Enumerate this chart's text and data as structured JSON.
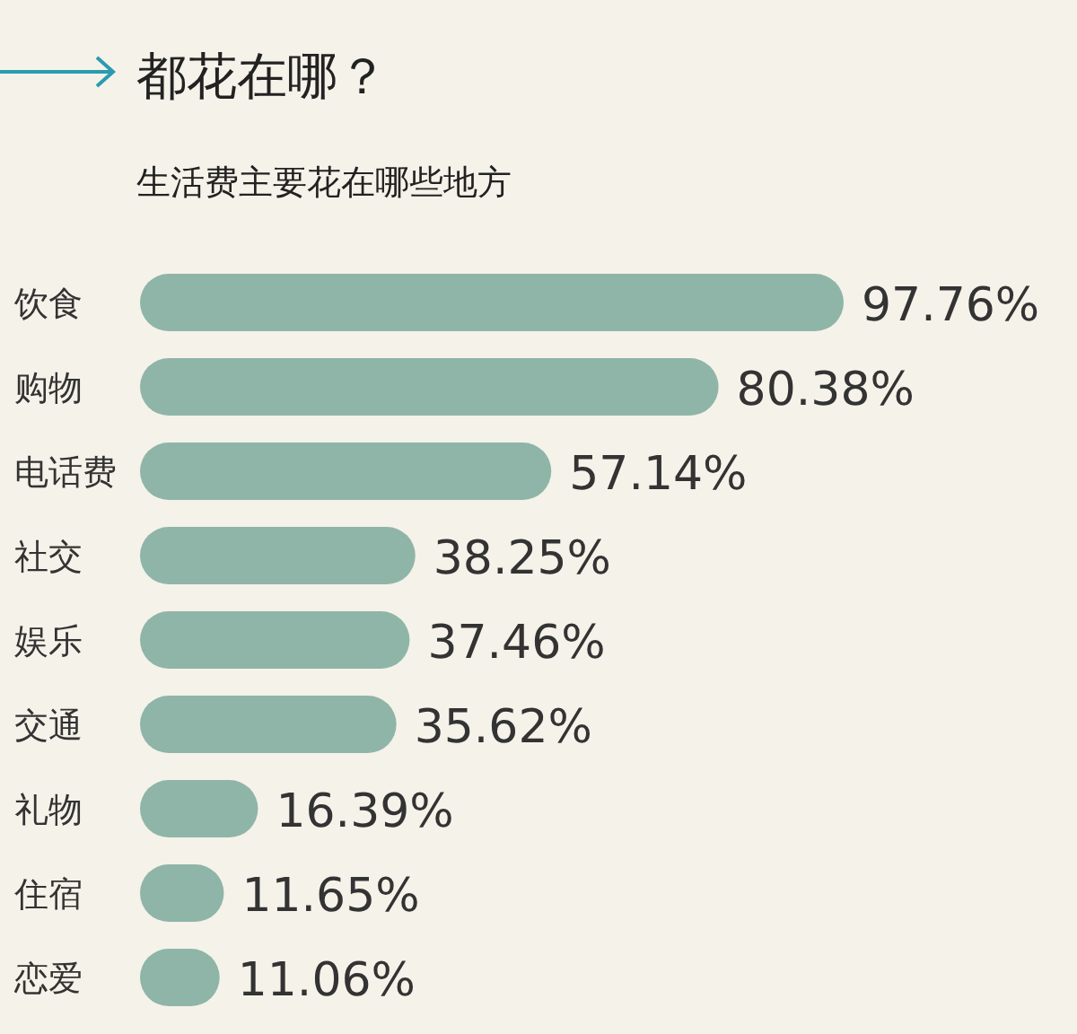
{
  "chart_data": {
    "type": "bar",
    "orientation": "horizontal",
    "title": "都花在哪？",
    "subtitle": "生活费主要花在哪些地方",
    "categories": [
      "饮食",
      "购物",
      "电话费",
      "社交",
      "娱乐",
      "交通",
      "礼物",
      "住宿",
      "恋爱"
    ],
    "values": [
      97.76,
      80.38,
      57.14,
      38.25,
      37.46,
      35.62,
      16.39,
      11.65,
      11.06
    ],
    "value_labels": [
      "97.76%",
      "80.38%",
      "57.14%",
      "38.25%",
      "37.46%",
      "35.62%",
      "16.39%",
      "11.65%",
      "11.06%"
    ],
    "color": "#8fb5a8"
  }
}
